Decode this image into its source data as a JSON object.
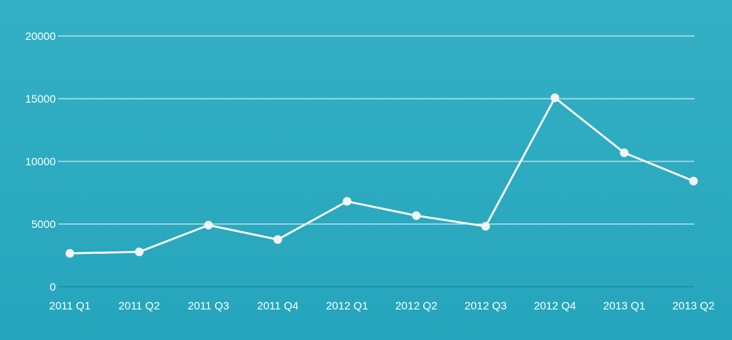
{
  "chart_data": {
    "type": "line",
    "title": "",
    "xlabel": "",
    "ylabel": "",
    "categories": [
      "2011 Q1",
      "2011 Q2",
      "2011 Q3",
      "2011 Q4",
      "2012 Q1",
      "2012 Q2",
      "2012 Q3",
      "2012 Q4",
      "2013 Q1",
      "2013 Q2"
    ],
    "series": [
      {
        "values": [
          2666,
          2778,
          4912,
          3767,
          6810,
          5670,
          4820,
          15073,
          10687,
          8432
        ]
      }
    ],
    "ylim": [
      0,
      20000
    ],
    "yticks": [
      "0",
      "5000",
      "10000",
      "15000",
      "20000"
    ],
    "grid": true,
    "legend": "none",
    "colors": {
      "background_top": "#34b0c4",
      "background_bottom": "#25a5bc",
      "line": "#ffffff",
      "point": "#f2f4f6",
      "grid": "#ffffff",
      "baseline": "#1a7f93"
    }
  }
}
